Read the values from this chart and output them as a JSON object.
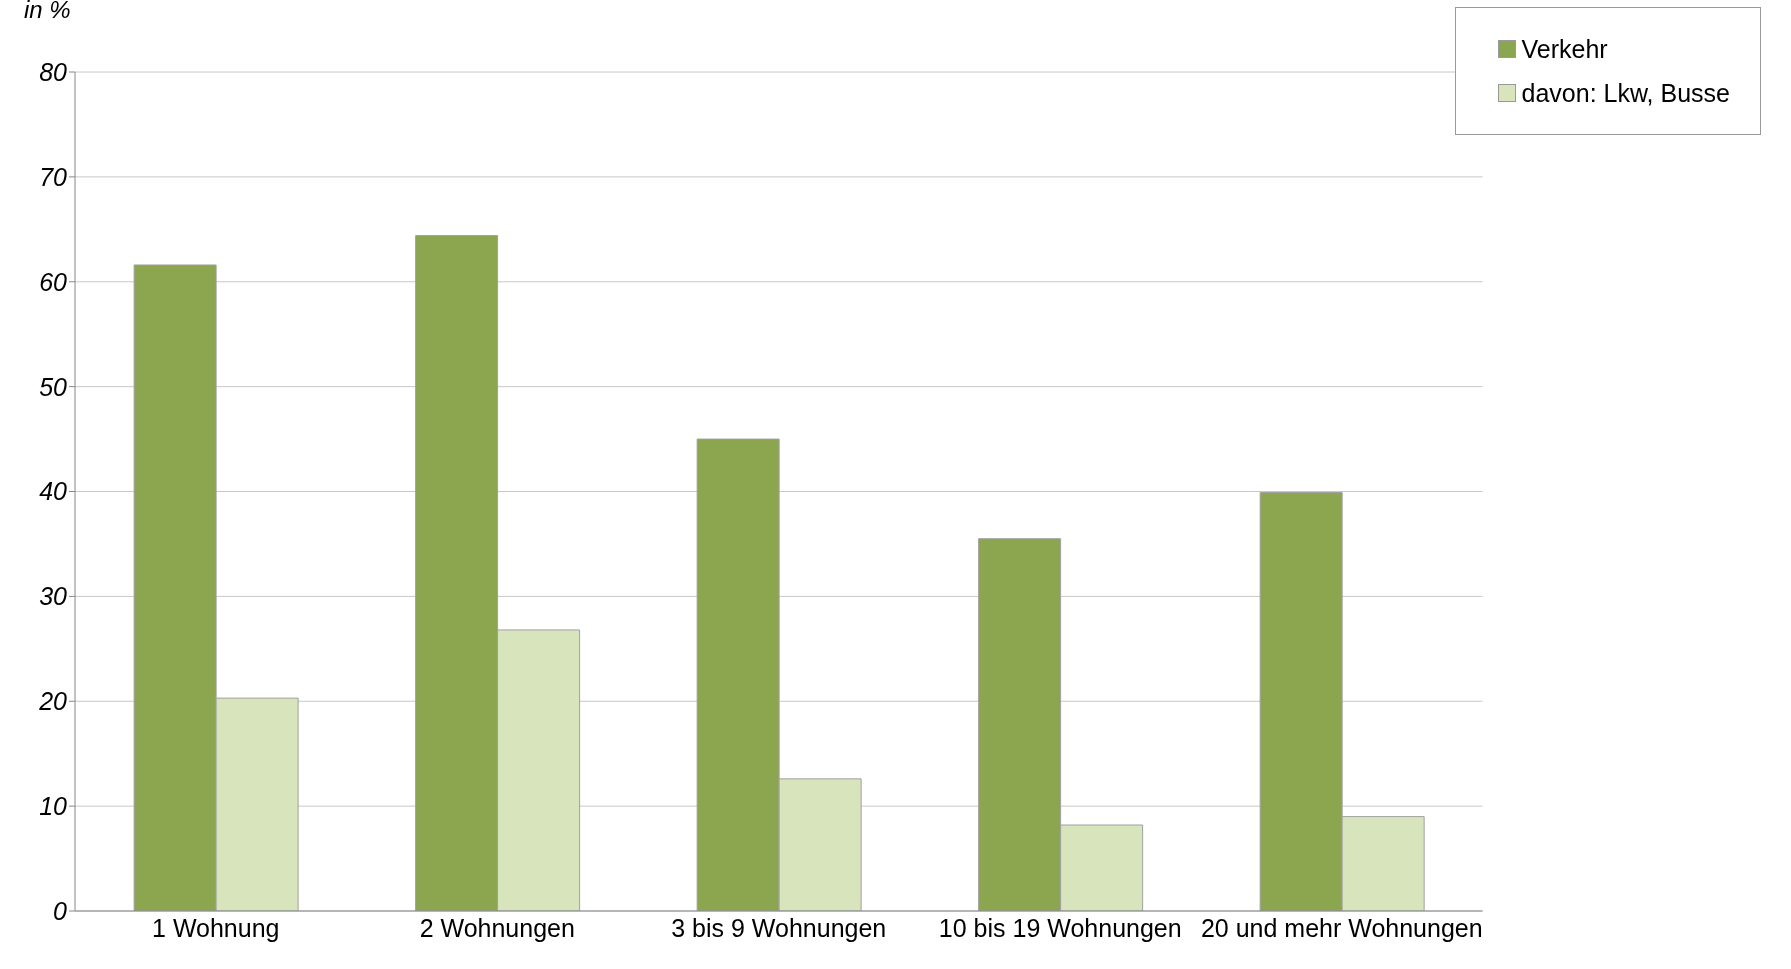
{
  "chart_data": {
    "type": "bar",
    "ylabel": "in %",
    "categories": [
      "1 Wohnung",
      "2 Wohnungen",
      "3 bis 9 Wohnungen",
      "10 bis 19 Wohnungen",
      "20 und mehr Wohnungen"
    ],
    "series": [
      {
        "name": "Verkehr",
        "color": "#8ba64f",
        "values": [
          61.6,
          64.4,
          45.0,
          35.5,
          39.9
        ]
      },
      {
        "name": "davon: Lkw, Busse",
        "color": "#d8e4bc",
        "values": [
          20.3,
          26.8,
          12.6,
          8.2,
          9.0
        ]
      }
    ],
    "ylim": [
      0,
      80
    ],
    "yticks": [
      0,
      10,
      20,
      30,
      40,
      50,
      60,
      70,
      80
    ],
    "grid": "y",
    "legend": "top right"
  }
}
